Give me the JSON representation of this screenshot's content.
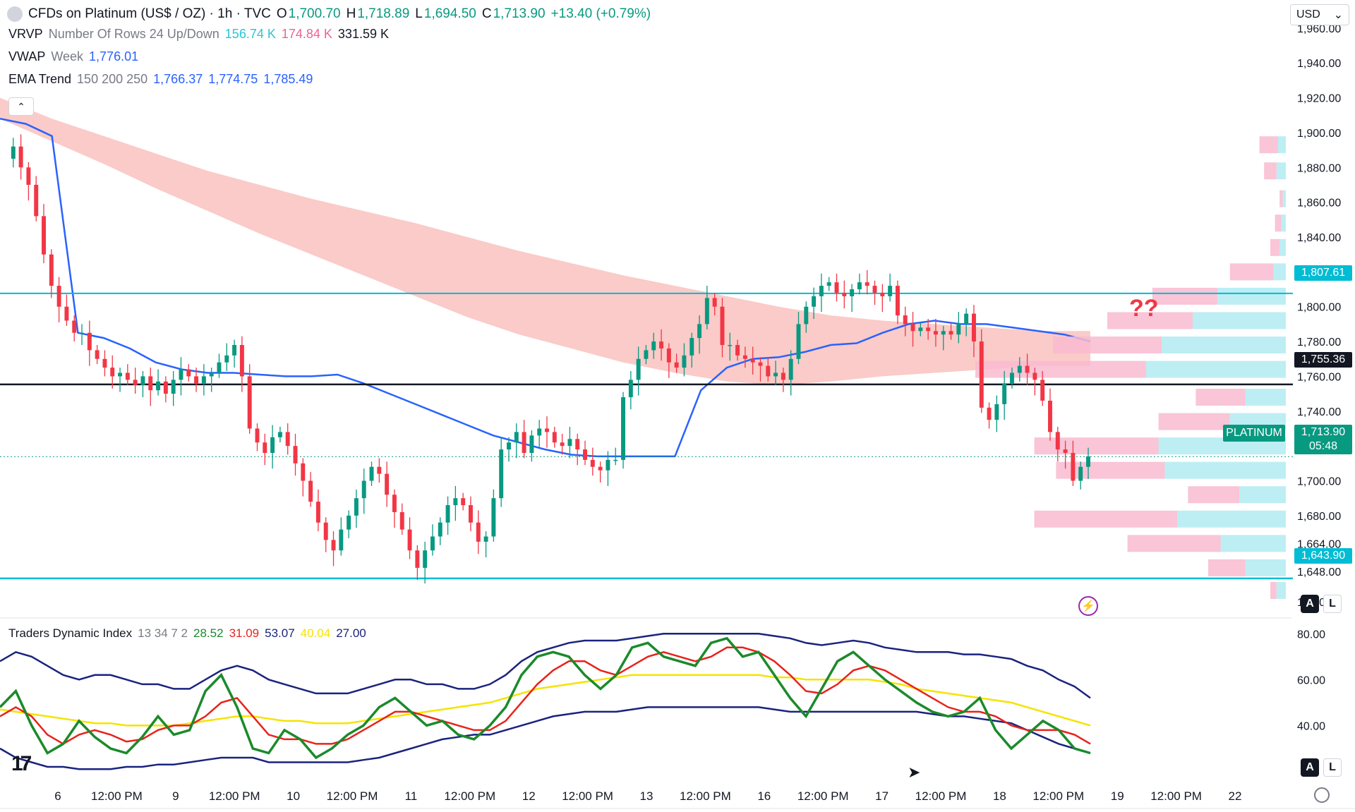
{
  "header": {
    "symbol": "CFDs on Platinum (US$ / OZ) · 1h · TVC",
    "open_label": "O",
    "open": "1,700.70",
    "high_label": "H",
    "high": "1,718.89",
    "low_label": "L",
    "low": "1,694.50",
    "close_label": "C",
    "close": "1,713.90",
    "change": "+13.40 (+0.79%)",
    "currency": "USD"
  },
  "indicators": {
    "vrvp": {
      "name": "VRVP",
      "params": "Number Of Rows 24 Up/Down",
      "v1": "156.74 K",
      "v2": "174.84 K",
      "v3": "331.59 K"
    },
    "vwap": {
      "name": "VWAP",
      "params": "Week",
      "v1": "1,776.01"
    },
    "ema": {
      "name": "EMA Trend",
      "params": "150 200 250",
      "v1": "1,766.37",
      "v2": "1,774.75",
      "v3": "1,785.49"
    },
    "tdi": {
      "name": "Traders Dynamic Index",
      "params": "13 34 7 2",
      "v1": "28.52",
      "v2": "31.09",
      "v3": "53.07",
      "v4": "40.04",
      "v5": "27.00"
    }
  },
  "annotation": "??",
  "price_badges": {
    "level_top": "1,807.61",
    "level_mid": "1,755.36",
    "symbol_tag": "PLATINUM",
    "last": "1,713.90",
    "countdown": "05:48",
    "level_bottom": "1,643.90"
  },
  "buttons": {
    "a": "A",
    "l": "L"
  },
  "colors": {
    "up": "#089981",
    "down": "#f23645",
    "level": "#00bcd4",
    "vwap": "#2962ff",
    "ema_band": "#f5a09a",
    "vp_up": "#b2ebf2",
    "vp_down": "#f8bbd0",
    "tdi_green": "#1b8a2a",
    "tdi_red": "#e8221b",
    "tdi_yellow": "#f4e400",
    "tdi_blue": "#1a237e"
  },
  "chart_data": {
    "type": "candlestick",
    "x_tick_labels": [
      "6",
      "12:00 PM",
      "9",
      "12:00 PM",
      "10",
      "12:00 PM",
      "11",
      "12:00 PM",
      "12",
      "12:00 PM",
      "13",
      "12:00 PM",
      "16",
      "12:00 PM",
      "17",
      "12:00 PM",
      "18",
      "12:00 PM",
      "19",
      "12:00 PM",
      "22"
    ],
    "y_tick_labels": [
      "1,960.00",
      "1,940.00",
      "1,920.00",
      "1,900.00",
      "1,880.00",
      "1,860.00",
      "1,840.00",
      "1,820.00",
      "1,800.00",
      "1,780.00",
      "1,760.00",
      "1,740.00",
      "1,720.00",
      "1,700.00",
      "1,680.00",
      "1,664.00",
      "1,648.00",
      "1,630.50"
    ],
    "ylim": [
      1630.5,
      1964
    ],
    "price_path": [
      1885,
      1892,
      1880,
      1870,
      1852,
      1830,
      1812,
      1800,
      1792,
      1785,
      1785,
      1775,
      1770,
      1765,
      1760,
      1762,
      1758,
      1755,
      1760,
      1752,
      1757,
      1750,
      1758,
      1764,
      1760,
      1756,
      1760,
      1762,
      1768,
      1772,
      1778,
      1760,
      1730,
      1722,
      1716,
      1725,
      1728,
      1720,
      1710,
      1700,
      1688,
      1676,
      1666,
      1660,
      1672,
      1680,
      1690,
      1700,
      1708,
      1704,
      1692,
      1682,
      1672,
      1660,
      1650,
      1660,
      1668,
      1676,
      1686,
      1690,
      1686,
      1676,
      1665,
      1668,
      1690,
      1718,
      1722,
      1728,
      1716,
      1726,
      1730,
      1728,
      1722,
      1720,
      1724,
      1718,
      1712,
      1708,
      1706,
      1712,
      1712,
      1748,
      1758,
      1770,
      1775,
      1780,
      1776,
      1768,
      1765,
      1772,
      1782,
      1790,
      1805,
      1800,
      1778,
      1778,
      1772,
      1770,
      1768,
      1766,
      1760,
      1762,
      1758,
      1770,
      1790,
      1800,
      1806,
      1812,
      1814,
      1808,
      1806,
      1810,
      1814,
      1812,
      1808,
      1806,
      1812,
      1795,
      1790,
      1786,
      1788,
      1786,
      1784,
      1786,
      1784,
      1790,
      1796,
      1780,
      1742,
      1735,
      1744,
      1756,
      1762,
      1766,
      1762,
      1758,
      1746,
      1728,
      1718,
      1716,
      1700,
      1708,
      1714
    ],
    "levels": {
      "resistance": 1807.61,
      "pivot": 1755.36,
      "support": 1643.9,
      "last": 1713.9
    },
    "vwap_path": [
      1908,
      1905,
      1898,
      1785,
      1782,
      1776,
      1768,
      1764,
      1762,
      1762,
      1761,
      1760,
      1760,
      1761,
      1756,
      1750,
      1744,
      1738,
      1732,
      1726,
      1722,
      1718,
      1715,
      1714,
      1714,
      1714,
      1714,
      1752,
      1765,
      1770,
      1771,
      1774,
      1778,
      1779,
      1785,
      1790,
      1792,
      1790,
      1790,
      1788,
      1786,
      1784,
      1780
    ],
    "ema_band_upper": [
      1920,
      1908,
      1898,
      1888,
      1878,
      1870,
      1862,
      1855,
      1848,
      1840,
      1832,
      1825,
      1818,
      1812,
      1806,
      1800,
      1795,
      1792,
      1790,
      1788,
      1786,
      1786
    ],
    "ema_band_lower": [
      1908,
      1895,
      1882,
      1868,
      1855,
      1842,
      1830,
      1818,
      1806,
      1794,
      1784,
      1776,
      1768,
      1762,
      1757,
      1755,
      1757,
      1760,
      1762,
      1764,
      1766,
      1766
    ],
    "volume_profile": [
      {
        "price": 1893,
        "up": 5,
        "down": 12
      },
      {
        "price": 1878,
        "up": 6,
        "down": 8
      },
      {
        "price": 1862,
        "up": 2,
        "down": 2
      },
      {
        "price": 1848,
        "up": 3,
        "down": 4
      },
      {
        "price": 1834,
        "up": 4,
        "down": 6
      },
      {
        "price": 1820,
        "up": 8,
        "down": 28
      },
      {
        "price": 1806,
        "up": 44,
        "down": 42
      },
      {
        "price": 1792,
        "up": 60,
        "down": 55
      },
      {
        "price": 1778,
        "up": 80,
        "down": 70
      },
      {
        "price": 1764,
        "up": 90,
        "down": 110
      },
      {
        "price": 1748,
        "up": 26,
        "down": 32
      },
      {
        "price": 1734,
        "up": 36,
        "down": 46
      },
      {
        "price": 1720,
        "up": 82,
        "down": 80
      },
      {
        "price": 1706,
        "up": 78,
        "down": 70
      },
      {
        "price": 1692,
        "up": 30,
        "down": 33
      },
      {
        "price": 1678,
        "up": 70,
        "down": 92
      },
      {
        "price": 1664,
        "up": 42,
        "down": 60
      },
      {
        "price": 1650,
        "up": 26,
        "down": 24
      },
      {
        "price": 1637,
        "up": 6,
        "down": 4
      }
    ],
    "tdi": {
      "ylim": [
        18,
        85
      ],
      "y_tick_labels": [
        "80.00",
        "60.00",
        "40.00"
      ],
      "green": [
        48,
        55,
        40,
        28,
        32,
        42,
        35,
        30,
        28,
        35,
        44,
        36,
        38,
        55,
        62,
        48,
        30,
        28,
        38,
        34,
        26,
        30,
        36,
        40,
        48,
        52,
        46,
        40,
        42,
        36,
        34,
        40,
        48,
        62,
        70,
        72,
        70,
        62,
        56,
        62,
        74,
        76,
        70,
        68,
        66,
        76,
        78,
        70,
        72,
        62,
        52,
        44,
        56,
        68,
        72,
        66,
        60,
        55,
        50,
        46,
        44,
        46,
        52,
        38,
        30,
        36,
        42,
        38,
        30,
        28
      ],
      "red": [
        44,
        48,
        44,
        36,
        32,
        36,
        38,
        36,
        33,
        34,
        38,
        40,
        40,
        44,
        50,
        52,
        44,
        36,
        34,
        34,
        32,
        32,
        34,
        38,
        42,
        46,
        46,
        44,
        42,
        40,
        38,
        38,
        42,
        50,
        58,
        64,
        68,
        68,
        64,
        62,
        66,
        70,
        72,
        70,
        68,
        70,
        74,
        74,
        72,
        68,
        62,
        55,
        54,
        58,
        64,
        66,
        64,
        60,
        56,
        52,
        48,
        46,
        46,
        44,
        40,
        38,
        38,
        38,
        36,
        32
      ],
      "yellow": [
        47,
        46,
        45,
        44,
        43,
        42,
        41,
        41,
        40,
        40,
        40,
        40,
        41,
        42,
        43,
        44,
        44,
        43,
        42,
        42,
        41,
        41,
        41,
        42,
        43,
        44,
        45,
        46,
        47,
        48,
        49,
        50,
        52,
        54,
        56,
        57,
        58,
        59,
        60,
        61,
        62,
        62,
        62,
        62,
        62,
        62,
        62,
        62,
        62,
        61,
        61,
        60,
        60,
        60,
        60,
        60,
        59,
        58,
        56,
        55,
        54,
        53,
        52,
        51,
        50,
        48,
        46,
        44,
        42,
        40
      ],
      "upper": [
        68,
        72,
        70,
        66,
        62,
        60,
        62,
        62,
        60,
        58,
        58,
        56,
        56,
        60,
        64,
        66,
        64,
        60,
        58,
        56,
        54,
        54,
        54,
        56,
        58,
        60,
        60,
        58,
        58,
        56,
        56,
        58,
        62,
        68,
        72,
        74,
        76,
        77,
        77,
        77,
        78,
        79,
        80,
        80,
        80,
        80,
        80,
        80,
        80,
        79,
        78,
        76,
        75,
        76,
        77,
        76,
        74,
        73,
        72,
        72,
        72,
        71,
        71,
        70,
        69,
        66,
        64,
        60,
        57,
        52
      ],
      "lower": [
        30,
        26,
        24,
        22,
        22,
        21,
        21,
        21,
        22,
        22,
        23,
        23,
        24,
        25,
        26,
        26,
        26,
        24,
        24,
        24,
        24,
        24,
        24,
        25,
        26,
        28,
        30,
        32,
        34,
        35,
        36,
        36,
        38,
        40,
        42,
        44,
        45,
        46,
        46,
        46,
        47,
        48,
        48,
        48,
        48,
        48,
        48,
        48,
        48,
        47,
        46,
        46,
        46,
        46,
        46,
        46,
        46,
        46,
        46,
        45,
        44,
        44,
        43,
        42,
        41,
        38,
        35,
        32,
        30,
        28
      ]
    }
  }
}
